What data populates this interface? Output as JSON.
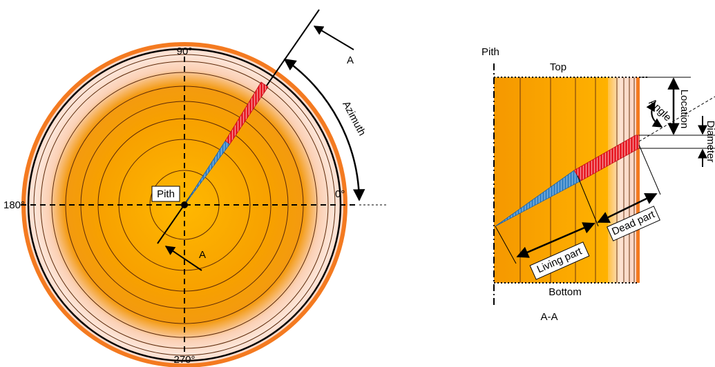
{
  "left": {
    "angles": {
      "top": "90°",
      "left": "180°",
      "right": "0°",
      "bottom": "270°"
    },
    "pith": "Pith",
    "section_marks": [
      "A",
      "A"
    ],
    "azimuth": "Azimuth"
  },
  "right": {
    "pith": "Pith",
    "top": "Top",
    "bottom": "Bottom",
    "location": "Location",
    "angle": "Angle",
    "diameter": "Diameter",
    "dead_part": "Dead part",
    "living_part": "Living part",
    "section": "A-A"
  }
}
